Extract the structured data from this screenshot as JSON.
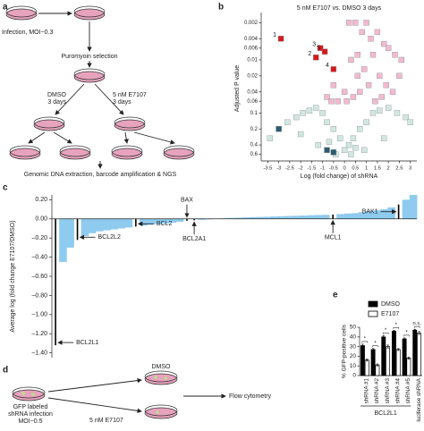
{
  "diagram_a": {
    "label": "a",
    "infection": "Infection, MOI~0.3",
    "selection": "Puromyoin selection",
    "dmso": [
      "DMSO",
      "3 days"
    ],
    "e7107": [
      "5 nM E7107",
      "3 days"
    ],
    "readout": "Genomic DNA extraction, barcode amplification & NGS"
  },
  "diagram_d": {
    "label": "d",
    "infection": [
      "GFP labeled",
      "shRNA infection",
      "MOI~0.5"
    ],
    "dmso": "DMSO",
    "e7107": "5 nM E7107",
    "readout": "Flow cytometry"
  },
  "chart_data": [
    {
      "type": "scatter",
      "panel": "b",
      "title": "5 nM E7107 vs. DMSO 3 days",
      "x_label": "Log (fold change) of shRNA",
      "y_label": "Adjusted P value",
      "xlim": [
        -3.8,
        3.3
      ],
      "xticks": [
        -3.5,
        -3,
        -2.5,
        -2,
        -1.5,
        -1,
        -0.5,
        0,
        0.5,
        1,
        1.5,
        2,
        2.5,
        3
      ],
      "ylim": [
        0.0015,
        0.8
      ],
      "yticks": [
        0.002,
        0.004,
        0.006,
        0.01,
        0.02,
        0.04,
        0.06,
        0.1,
        0.2,
        0.4,
        0.6
      ],
      "log_y": true,
      "y_reversed": true,
      "series": [
        {
          "color": "#f2b9d0",
          "x": [
            0.2,
            0.5,
            0.8,
            1.0,
            1.2,
            1.5,
            1.8,
            2.0,
            2.3,
            2.6,
            0.3,
            0.6,
            0.9,
            1.3,
            1.6,
            1.9,
            2.2,
            0.4,
            0.7,
            1.1,
            1.4,
            1.7,
            2.5,
            -0.5,
            -0.8,
            -0.3,
            0.0,
            0.1,
            -0.6,
            0.6
          ],
          "values": [
            0.002,
            0.002,
            0.003,
            0.002,
            0.004,
            0.003,
            0.005,
            0.006,
            0.008,
            0.01,
            0.01,
            0.02,
            0.015,
            0.008,
            0.02,
            0.03,
            0.04,
            0.05,
            0.04,
            0.03,
            0.06,
            0.05,
            0.02,
            0.03,
            0.05,
            0.06,
            0.04,
            0.06,
            0.06,
            0.008
          ]
        },
        {
          "color": "#d3e6e2",
          "x": [
            -3.4,
            -3.0,
            -2.6,
            -2.2,
            -1.9,
            -1.6,
            -1.3,
            -1.0,
            -0.8,
            -0.5,
            -0.2,
            0.0,
            0.2,
            0.4,
            0.7,
            1.0,
            1.3,
            1.6,
            2.0,
            2.4,
            2.8,
            3.0,
            -2.0,
            -1.2,
            -0.4,
            0.3,
            0.9,
            1.8,
            -0.7,
            0.5
          ],
          "values": [
            0.3,
            0.2,
            0.15,
            0.12,
            0.1,
            0.09,
            0.08,
            0.1,
            0.15,
            0.2,
            0.3,
            0.5,
            0.4,
            0.3,
            0.2,
            0.15,
            0.1,
            0.09,
            0.08,
            0.1,
            0.12,
            0.15,
            0.25,
            0.4,
            0.6,
            0.6,
            0.5,
            0.3,
            0.35,
            0.45
          ]
        },
        {
          "color": "#2f5b70",
          "x": [
            -3.0,
            -0.8,
            -0.5
          ],
          "values": [
            0.2,
            0.5,
            0.55
          ]
        },
        {
          "color": "#d7191c",
          "x": [
            -2.9,
            -1.1,
            -1.3,
            -0.9,
            -0.5
          ],
          "values": [
            0.004,
            0.006,
            0.009,
            0.007,
            0.015
          ],
          "point_labels": [
            "1",
            "3",
            "2",
            "5",
            "4"
          ]
        }
      ]
    },
    {
      "type": "bar",
      "panel": "c",
      "y_label": "Average log (fold change E7107/DMSO)",
      "ylim": [
        -1.45,
        0.25
      ],
      "yticks": [
        {
          "value": 0.2,
          "label": "0.20"
        },
        {
          "value": 0,
          "label": "0.00"
        },
        {
          "value": -0.2,
          "label": "–0.20"
        },
        {
          "value": -0.4,
          "label": "–0.40"
        },
        {
          "value": -0.6,
          "label": "–0.60"
        },
        {
          "value": -0.8,
          "label": "–0.80"
        },
        {
          "value": -1,
          "label": "–1.00"
        },
        {
          "value": -1.2,
          "label": "–1.20"
        },
        {
          "value": -1.4,
          "label": "–1.40"
        }
      ],
      "color": "#8ecbef",
      "highlight_color": "#000000",
      "categories": [
        "BCL2L1",
        null,
        null,
        "BCL2L2",
        null,
        null,
        null,
        null,
        null,
        null,
        null,
        "BCL2",
        null,
        null,
        null,
        null,
        null,
        null,
        "BAX",
        "BCL2A1",
        null,
        null,
        null,
        null,
        null,
        null,
        null,
        null,
        null,
        null,
        null,
        null,
        null,
        null,
        null,
        null,
        null,
        null,
        "MCL1",
        null,
        null,
        null,
        null,
        null,
        null,
        null,
        null,
        "BAK1",
        null,
        null
      ],
      "values": [
        -1.32,
        -0.45,
        -0.3,
        -0.22,
        -0.18,
        -0.15,
        -0.13,
        -0.12,
        -0.11,
        -0.1,
        -0.09,
        -0.08,
        -0.07,
        -0.06,
        -0.055,
        -0.05,
        -0.04,
        -0.03,
        -0.02,
        -0.015,
        -0.01,
        -0.005,
        0,
        0.005,
        0.01,
        0.012,
        0.015,
        0.018,
        0.02,
        0.022,
        0.025,
        0.028,
        0.03,
        0.032,
        0.035,
        0.038,
        0.04,
        0.042,
        0.045,
        0.05,
        0.055,
        0.06,
        0.07,
        0.08,
        0.09,
        0.1,
        0.12,
        0.15,
        0.2,
        0.25
      ]
    },
    {
      "type": "grouped_bar",
      "panel": "e",
      "y_label": "% GFP-positive cells",
      "ylim": [
        0,
        50
      ],
      "yticks": [
        0,
        10,
        20,
        30,
        40,
        50
      ],
      "categories": [
        "shRNA #1",
        "shRNA #2",
        "shRNA #3",
        "shRNA #4",
        "shRNA #5",
        "luciferase shRNA"
      ],
      "group_label": "BCL2L1",
      "significance": [
        "*",
        "*",
        "*",
        "*",
        "*",
        "n.s."
      ],
      "series": [
        {
          "name": "DMSO",
          "color": "#000000",
          "values": [
            31,
            27,
            40,
            46,
            38,
            47
          ],
          "errors": [
            1.5,
            1,
            1.5,
            1,
            1,
            1
          ]
        },
        {
          "name": "E7107",
          "color": "#ffffff",
          "values": [
            16,
            11,
            30,
            27,
            18,
            44
          ],
          "errors": [
            1,
            1,
            1.5,
            1,
            1,
            1.5
          ]
        }
      ]
    }
  ]
}
